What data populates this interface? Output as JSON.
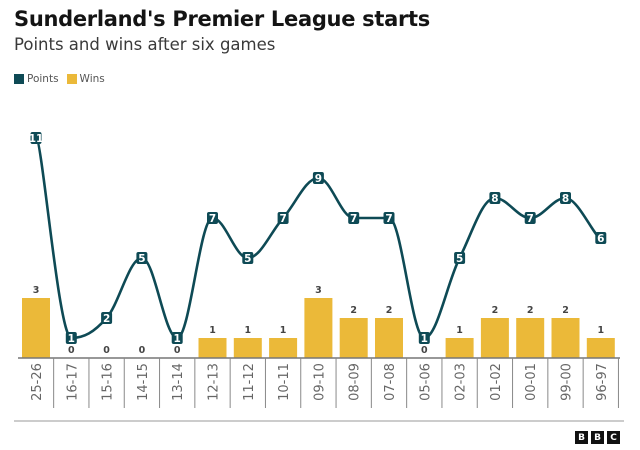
{
  "header": {
    "title": "Sunderland's Premier League starts",
    "subtitle": "Points and wins after six games"
  },
  "legend": [
    {
      "label": "Points",
      "color": "#0e4a55"
    },
    {
      "label": "Wins",
      "color": "#ebb939"
    }
  ],
  "footer": {
    "logo_letters": [
      "B",
      "B",
      "C"
    ]
  },
  "chart_data": {
    "type": "bar+line",
    "title": "Sunderland's Premier League starts",
    "subtitle": "Points and wins after six games",
    "categories": [
      "25-26",
      "16-17",
      "15-16",
      "14-15",
      "13-14",
      "12-13",
      "11-12",
      "10-11",
      "09-10",
      "08-09",
      "07-08",
      "05-06",
      "02-03",
      "01-02",
      "00-01",
      "99-00",
      "96-97"
    ],
    "series": [
      {
        "name": "Points",
        "type": "line",
        "color": "#0e4a55",
        "values": [
          11,
          1,
          2,
          5,
          1,
          7,
          5,
          7,
          9,
          7,
          7,
          1,
          5,
          8,
          7,
          8,
          6
        ]
      },
      {
        "name": "Wins",
        "type": "bar",
        "color": "#ebb939",
        "values": [
          3,
          0,
          0,
          0,
          0,
          1,
          1,
          1,
          3,
          2,
          2,
          0,
          1,
          2,
          2,
          2,
          1
        ]
      }
    ],
    "ylim": [
      0,
      11
    ],
    "legend_position": "top-left",
    "grid": false
  }
}
